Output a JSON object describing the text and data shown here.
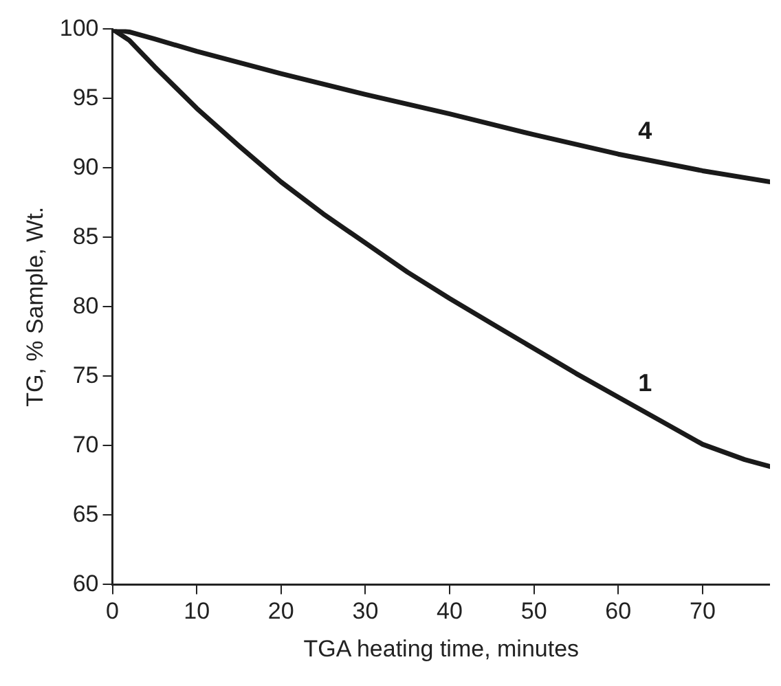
{
  "chart_data": {
    "type": "line",
    "xlabel": "TGA heating time, minutes",
    "ylabel": "TG, % Sample, Wt.",
    "xlim": [
      0,
      78
    ],
    "xticks": [
      0,
      10,
      20,
      30,
      40,
      50,
      60,
      70
    ],
    "ylim": [
      60,
      100
    ],
    "yticks": [
      60,
      65,
      70,
      75,
      80,
      85,
      90,
      95,
      100
    ],
    "grid": false,
    "legend": false,
    "marker": "none",
    "line_style": "solid",
    "series": [
      {
        "color": "#1a1a1a",
        "x": [
          0,
          2,
          5,
          10,
          15,
          20,
          25,
          30,
          35,
          40,
          45,
          50,
          55,
          60,
          65,
          70,
          75,
          78
        ],
        "values": [
          100,
          99.2,
          97.3,
          94.3,
          91.6,
          89,
          86.7,
          84.6,
          82.5,
          80.6,
          78.8,
          77,
          75.2,
          73.5,
          71.8,
          70.1,
          69,
          68.5
        ]
      },
      {
        "color": "#1a1a1a",
        "x": [
          0,
          2,
          5,
          10,
          20,
          30,
          40,
          50,
          60,
          70,
          78
        ],
        "values": [
          100,
          99.8,
          99.3,
          98.4,
          96.8,
          95.3,
          93.9,
          92.4,
          91,
          89.8,
          89
        ]
      }
    ],
    "annotations": [
      "1",
      "4"
    ]
  }
}
